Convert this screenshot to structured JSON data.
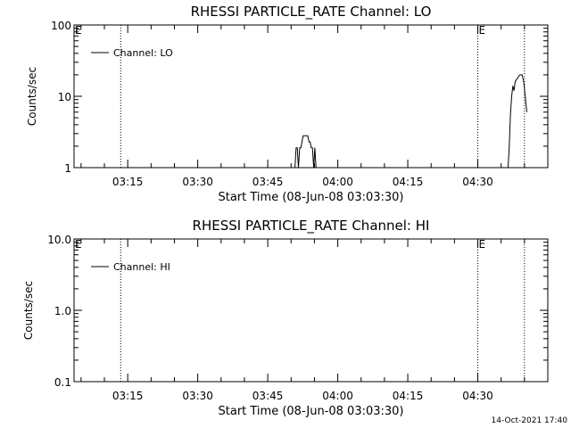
{
  "chart_data": [
    {
      "type": "line",
      "title": "RHESSI PARTICLE_RATE Channel: LO",
      "xlabel": "Start Time (08-Jun-08 03:03:30)",
      "ylabel": "Counts/sec",
      "yscale": "log",
      "xlim": [
        "03:03:30",
        "04:45:00"
      ],
      "ylim": [
        1,
        100
      ],
      "x_ticks": [
        "03:15",
        "03:30",
        "03:45",
        "04:00",
        "04:15",
        "04:30"
      ],
      "y_ticks": [
        "1",
        "10",
        "100"
      ],
      "grid": false,
      "legend": {
        "position": "top-left",
        "entries": [
          "Channel: LO"
        ]
      },
      "vlines": [
        {
          "x": "03:13:30",
          "style": "dotted"
        },
        {
          "x": "04:30:00",
          "style": "dotted"
        },
        {
          "x": "04:40:00",
          "style": "dotted"
        }
      ],
      "markers": [
        {
          "label": "E",
          "x": "03:03:30"
        },
        {
          "label": "E",
          "x": "04:30:00"
        }
      ],
      "series": [
        {
          "name": "Channel: LO",
          "segments": [
            [
              [
                "03:50:50",
                1
              ],
              [
                "03:51:05",
                1.9
              ],
              [
                "03:51:20",
                1.9
              ],
              [
                "03:51:35",
                1
              ],
              [
                "03:51:50",
                1.9
              ],
              [
                "03:52:05",
                1.9
              ],
              [
                "03:52:20",
                2.3
              ],
              [
                "03:52:35",
                2.8
              ],
              [
                "03:53:35",
                2.8
              ],
              [
                "03:53:50",
                2.3
              ],
              [
                "03:54:05",
                2.3
              ],
              [
                "03:54:20",
                1.9
              ],
              [
                "03:54:35",
                1.9
              ],
              [
                "03:54:50",
                1
              ],
              [
                "03:55:05",
                1.9
              ],
              [
                "03:55:20",
                1
              ]
            ],
            [
              [
                "04:36:30",
                1
              ],
              [
                "04:36:45",
                2
              ],
              [
                "04:37:00",
                5.5
              ],
              [
                "04:37:15",
                10
              ],
              [
                "04:37:30",
                14
              ],
              [
                "04:37:45",
                12
              ],
              [
                "04:38:00",
                16
              ],
              [
                "04:38:30",
                18
              ],
              [
                "04:39:00",
                20
              ],
              [
                "04:39:30",
                20
              ],
              [
                "04:39:50",
                16
              ],
              [
                "04:40:10",
                10
              ],
              [
                "04:40:30",
                6
              ]
            ]
          ]
        }
      ]
    },
    {
      "type": "line",
      "title": "RHESSI PARTICLE_RATE Channel: HI",
      "xlabel": "Start Time (08-Jun-08 03:03:30)",
      "ylabel": "Counts/sec",
      "yscale": "log",
      "xlim": [
        "03:03:30",
        "04:45:00"
      ],
      "ylim": [
        0.1,
        10
      ],
      "x_ticks": [
        "03:15",
        "03:30",
        "03:45",
        "04:00",
        "04:15",
        "04:30"
      ],
      "y_ticks": [
        "0.1",
        "1.0",
        "10.0"
      ],
      "grid": false,
      "legend": {
        "position": "top-left",
        "entries": [
          "Channel: HI"
        ]
      },
      "vlines": [
        {
          "x": "03:13:30",
          "style": "dotted"
        },
        {
          "x": "04:30:00",
          "style": "dotted"
        },
        {
          "x": "04:40:00",
          "style": "dotted"
        }
      ],
      "markers": [
        {
          "label": "E",
          "x": "03:03:30"
        },
        {
          "label": "E",
          "x": "04:30:00"
        }
      ],
      "series": [
        {
          "name": "Channel: HI",
          "segments": []
        }
      ]
    }
  ],
  "footer": {
    "timestamp": "14-Oct-2021 17:40"
  }
}
